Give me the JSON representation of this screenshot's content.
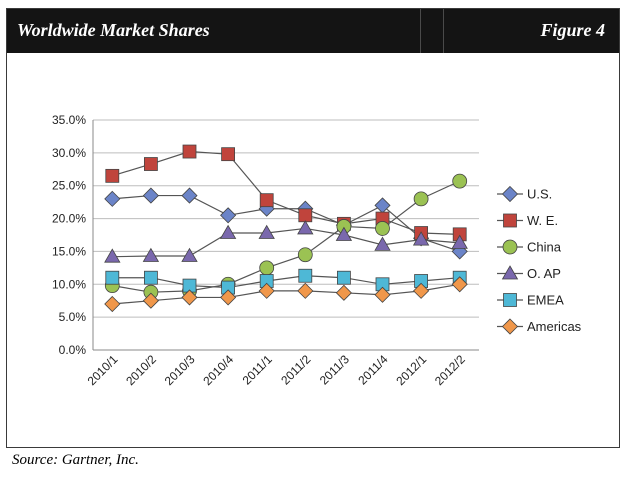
{
  "header": {
    "title": "Worldwide Market Shares",
    "figure": "Figure 4"
  },
  "source": "Source: Gartner, Inc.",
  "chart_data": {
    "type": "line",
    "categories": [
      "2010/1",
      "2010/2",
      "2010/3",
      "2010/4",
      "2011/1",
      "2011/2",
      "2011/3",
      "2011/4",
      "2012/1",
      "2012/2"
    ],
    "ylim": [
      0,
      35
    ],
    "yticks": [
      "0.0%",
      "5.0%",
      "10.0%",
      "15.0%",
      "20.0%",
      "25.0%",
      "30.0%",
      "35.0%"
    ],
    "grid": true,
    "legend": "right",
    "series": [
      {
        "name": "U.S.",
        "marker": "diamond",
        "color": "#6b84c8",
        "values": [
          23.0,
          23.5,
          23.5,
          20.5,
          21.5,
          21.5,
          19.0,
          22.0,
          17.0,
          15.0
        ]
      },
      {
        "name": "W. E.",
        "marker": "square",
        "color": "#c0443c",
        "values": [
          26.5,
          28.3,
          30.2,
          29.8,
          22.8,
          20.5,
          19.2,
          20.0,
          17.8,
          17.6
        ]
      },
      {
        "name": "China",
        "marker": "circle",
        "color": "#9bc253",
        "values": [
          9.8,
          8.8,
          9.0,
          10.0,
          12.5,
          14.5,
          18.8,
          18.5,
          23.0,
          25.7
        ]
      },
      {
        "name": "O. AP",
        "marker": "triangle",
        "color": "#7a68ad",
        "values": [
          14.2,
          14.3,
          14.3,
          17.8,
          17.8,
          18.5,
          17.5,
          16.0,
          16.8,
          16.3
        ]
      },
      {
        "name": "EMEA",
        "marker": "square",
        "color": "#4eb8d6",
        "values": [
          11.0,
          11.0,
          9.8,
          9.5,
          10.5,
          11.3,
          11.0,
          10.0,
          10.5,
          11.0
        ]
      },
      {
        "name": "Americas",
        "marker": "diamond",
        "color": "#f0974a",
        "values": [
          7.0,
          7.5,
          8.0,
          8.0,
          9.0,
          9.0,
          8.7,
          8.4,
          9.0,
          10.0
        ]
      }
    ]
  }
}
